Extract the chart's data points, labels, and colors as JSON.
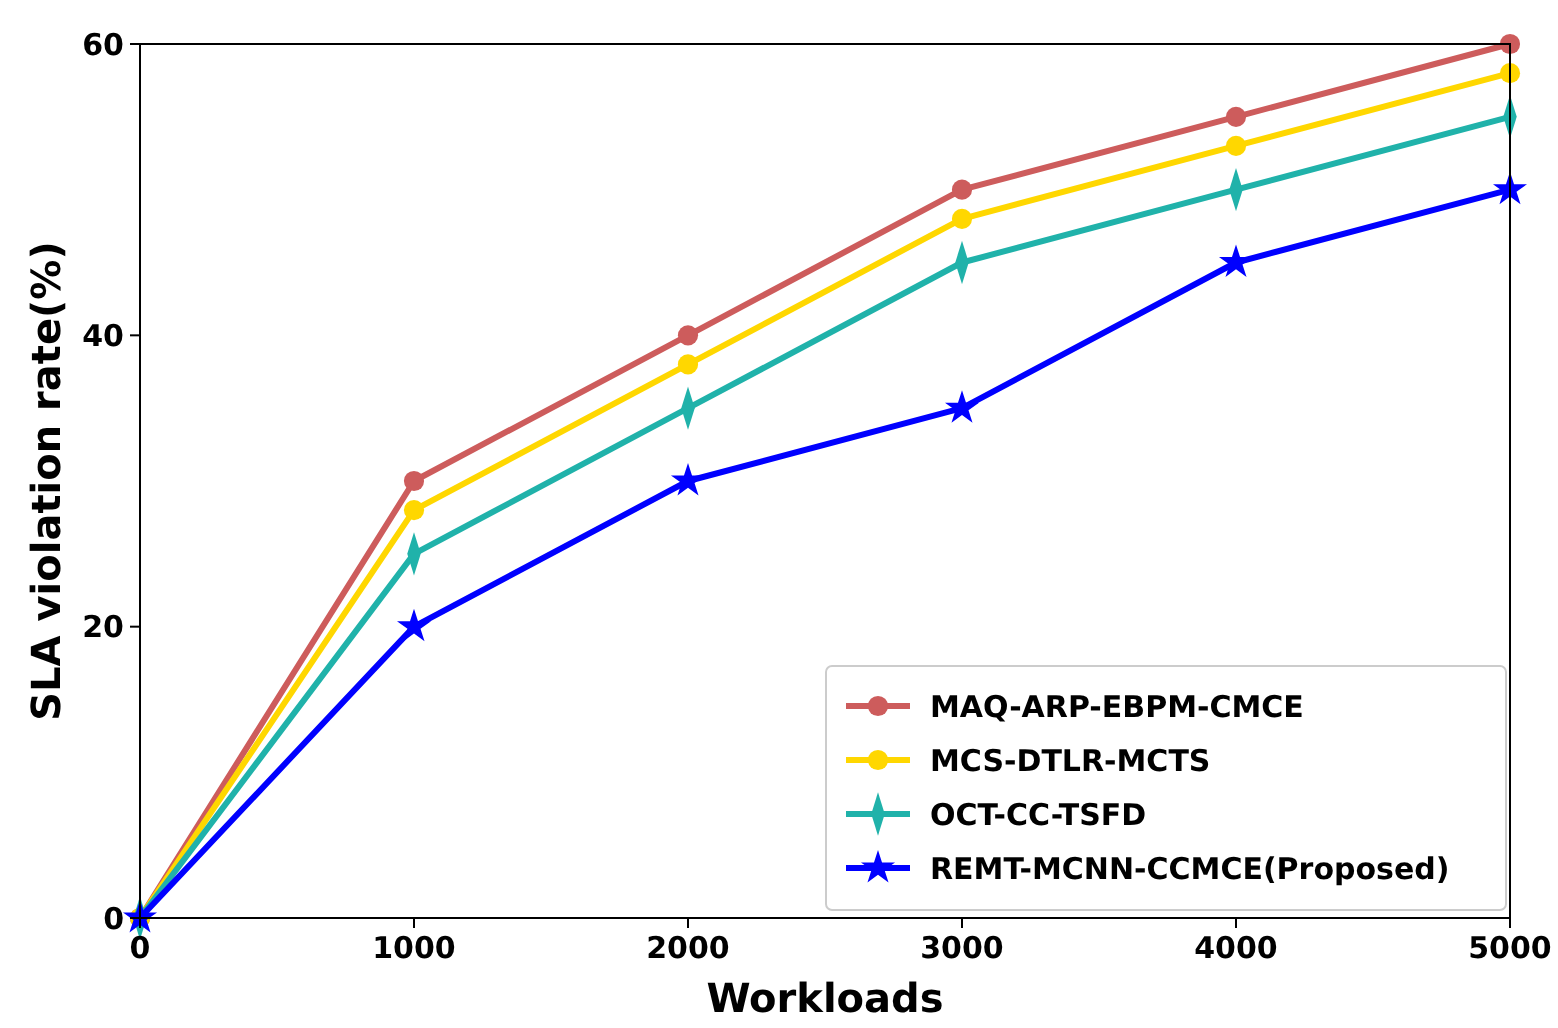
{
  "chart_data": {
    "type": "line",
    "xlabel": "Workloads",
    "ylabel": "SLA violation rate(%)",
    "x": [
      0,
      1000,
      2000,
      3000,
      4000,
      5000
    ],
    "series": [
      {
        "name": "MAQ-ARP-EBPM-CMCE",
        "color": "#cd5c5c",
        "marker": "circle",
        "values": [
          0,
          30,
          40,
          50,
          55,
          60
        ]
      },
      {
        "name": "MCS-DTLR-MCTS",
        "color": "#ffd700",
        "marker": "circle",
        "values": [
          0,
          28,
          38,
          48,
          53,
          58
        ]
      },
      {
        "name": "OCT-CC-TSFD",
        "color": "#20b2aa",
        "marker": "diamond",
        "values": [
          0,
          25,
          35,
          45,
          50,
          55
        ]
      },
      {
        "name": "REMT-MCNN-CCMCE(Proposed)",
        "color": "#0000ff",
        "marker": "star",
        "values": [
          0,
          20,
          30,
          35,
          45,
          50
        ]
      }
    ],
    "xlim": [
      0,
      5000
    ],
    "ylim": [
      0,
      60
    ],
    "xticks": [
      0,
      1000,
      2000,
      3000,
      4000,
      5000
    ],
    "yticks": [
      0,
      20,
      40,
      60
    ],
    "grid": false,
    "legend": "bottom right",
    "line_style": "solid"
  }
}
